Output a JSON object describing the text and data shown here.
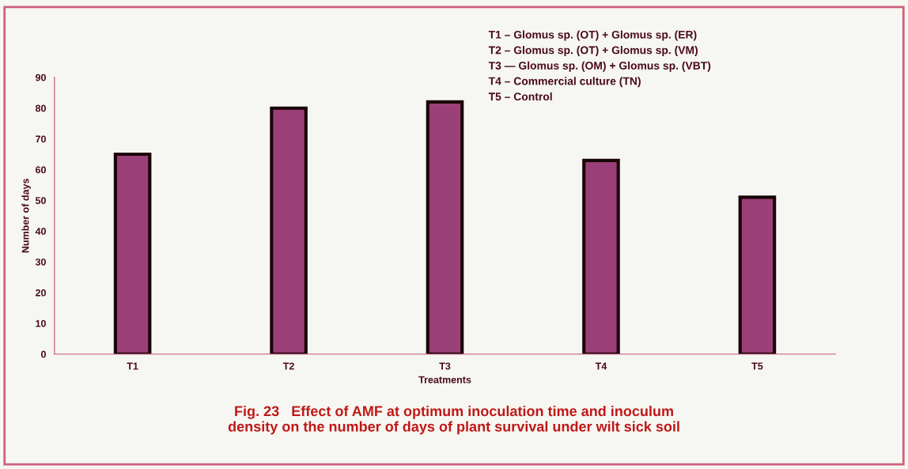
{
  "chart_data": {
    "type": "bar",
    "title": "Fig. 23   Effect of AMF at optimum inoculation time and inoculum\ndensity on the number of days of plant survival under wilt sick soil",
    "xlabel": "Treatments",
    "ylabel": "Number of days",
    "categories": [
      "T1",
      "T2",
      "T3",
      "T4",
      "T5"
    ],
    "values": [
      65,
      80,
      82,
      63,
      51
    ],
    "color": "#9b3f78",
    "ylim": [
      0,
      90
    ],
    "yticks": [
      0,
      10,
      20,
      30,
      40,
      50,
      60,
      70,
      80,
      90
    ],
    "grid": false,
    "legend": false,
    "annotations": [
      "T1 – Glomus sp. (OT) + Glomus sp. (ER)",
      "T2 – Glomus sp. (OT) + Glomus sp. (VM)",
      "T3 — Glomus sp. (OM) + Glomus sp. (VBT)",
      "T4 – Commercial culture (TN)",
      "T5 – Control"
    ]
  }
}
